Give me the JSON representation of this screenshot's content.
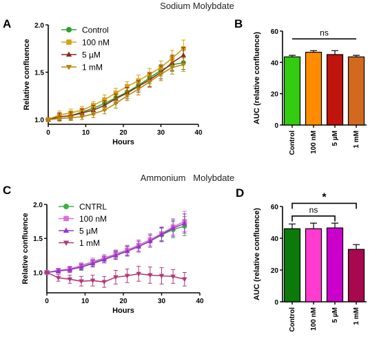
{
  "section_titles": [
    "Sodium Molybdate",
    "Ammonium   Molybdate"
  ],
  "panel_labels": [
    "A",
    "B",
    "C",
    "D"
  ],
  "chart_data": [
    {
      "panel": "A",
      "type": "line",
      "xlabel": "Hours",
      "ylabel": "Relative confluence",
      "xlim": [
        0,
        40
      ],
      "ylim": [
        0.95,
        2.0
      ],
      "xticks": [
        0,
        10,
        20,
        30,
        40
      ],
      "yticks": [
        1.0,
        1.5,
        2.0
      ],
      "ytick_labels": [
        "1.0",
        "1.5",
        "2.0"
      ],
      "legend_position": "top-left",
      "x": [
        0,
        3,
        6,
        9,
        12,
        15,
        18,
        21,
        24,
        27,
        30,
        33,
        36
      ],
      "series": [
        {
          "name": "Control",
          "color": "#2ca02c",
          "marker": "circle",
          "values": [
            1.0,
            1.03,
            1.04,
            1.08,
            1.12,
            1.17,
            1.23,
            1.29,
            1.36,
            1.44,
            1.52,
            1.58,
            1.6
          ],
          "errors": [
            0.01,
            0.03,
            0.03,
            0.03,
            0.03,
            0.04,
            0.04,
            0.05,
            0.05,
            0.06,
            0.06,
            0.07,
            0.07
          ]
        },
        {
          "name": "100 nM",
          "color": "#d4a017",
          "marker": "square",
          "values": [
            1.0,
            1.05,
            1.07,
            1.1,
            1.15,
            1.21,
            1.28,
            1.35,
            1.41,
            1.48,
            1.55,
            1.65,
            1.75
          ],
          "errors": [
            0.01,
            0.04,
            0.04,
            0.04,
            0.04,
            0.05,
            0.05,
            0.05,
            0.06,
            0.06,
            0.07,
            0.08,
            0.09
          ]
        },
        {
          "name": "5 µM",
          "color": "#8b2a1a",
          "marker": "triangle-up",
          "values": [
            1.0,
            1.03,
            1.04,
            1.07,
            1.1,
            1.15,
            1.22,
            1.28,
            1.35,
            1.42,
            1.5,
            1.6,
            1.68
          ],
          "errors": [
            0.01,
            0.04,
            0.04,
            0.04,
            0.05,
            0.05,
            0.05,
            0.06,
            0.06,
            0.07,
            0.07,
            0.08,
            0.08
          ]
        },
        {
          "name": "1 mM",
          "color": "#b8860b",
          "marker": "triangle-down",
          "values": [
            1.0,
            1.01,
            1.02,
            1.03,
            1.06,
            1.1,
            1.17,
            1.25,
            1.32,
            1.4,
            1.48,
            1.55,
            1.58
          ],
          "errors": [
            0.01,
            0.03,
            0.03,
            0.03,
            0.04,
            0.04,
            0.05,
            0.05,
            0.06,
            0.06,
            0.07,
            0.07,
            0.07
          ]
        }
      ]
    },
    {
      "panel": "B",
      "type": "bar",
      "ylabel": "AUC (relative confluence)",
      "ylim": [
        0,
        60
      ],
      "yticks": [
        0,
        20,
        40,
        60
      ],
      "categories": [
        "Control",
        "100 nM",
        "5 µM",
        "1 mM"
      ],
      "values": [
        43.5,
        46.5,
        45.0,
        43.5
      ],
      "errors": [
        1.0,
        1.0,
        2.5,
        1.0
      ],
      "colors": [
        "#33cc11",
        "#ff8c00",
        "#c0140c",
        "#d2691e"
      ],
      "comparisons": [
        {
          "from": 0,
          "to": 3,
          "label": "ns",
          "level": 55
        }
      ]
    },
    {
      "panel": "C",
      "type": "line",
      "xlabel": "Hours",
      "ylabel": "Relative confluence",
      "xlim": [
        0,
        40
      ],
      "ylim": [
        0.7,
        2.0
      ],
      "xticks": [
        0,
        10,
        20,
        30,
        40
      ],
      "yticks": [
        1.0,
        1.5,
        2.0
      ],
      "ytick_labels": [
        "1.0",
        "1.5",
        "2.0"
      ],
      "legend_position": "top-left",
      "x": [
        0,
        3,
        6,
        9,
        12,
        15,
        18,
        21,
        24,
        27,
        30,
        33,
        36
      ],
      "series": [
        {
          "name": "CNTRL",
          "color": "#3cb043",
          "marker": "circle",
          "values": [
            1.0,
            1.02,
            1.04,
            1.08,
            1.14,
            1.2,
            1.26,
            1.32,
            1.38,
            1.46,
            1.55,
            1.63,
            1.68
          ],
          "errors": [
            0.01,
            0.03,
            0.04,
            0.05,
            0.05,
            0.06,
            0.06,
            0.07,
            0.08,
            0.09,
            0.1,
            0.12,
            0.14
          ]
        },
        {
          "name": "100 nM",
          "color": "#da70d6",
          "marker": "square",
          "values": [
            1.0,
            1.03,
            1.05,
            1.1,
            1.16,
            1.21,
            1.27,
            1.33,
            1.4,
            1.48,
            1.57,
            1.67,
            1.75
          ],
          "errors": [
            0.01,
            0.03,
            0.04,
            0.04,
            0.05,
            0.05,
            0.06,
            0.07,
            0.08,
            0.09,
            0.1,
            0.12,
            0.15
          ]
        },
        {
          "name": "5 µM",
          "color": "#9933cc",
          "marker": "triangle-up",
          "values": [
            1.0,
            1.02,
            1.04,
            1.08,
            1.13,
            1.19,
            1.25,
            1.31,
            1.38,
            1.46,
            1.56,
            1.65,
            1.72
          ],
          "errors": [
            0.01,
            0.03,
            0.04,
            0.04,
            0.05,
            0.05,
            0.06,
            0.07,
            0.08,
            0.09,
            0.1,
            0.12,
            0.14
          ]
        },
        {
          "name": "1 mM",
          "color": "#b03a7a",
          "marker": "triangle-down",
          "values": [
            1.0,
            0.92,
            0.9,
            0.87,
            0.88,
            0.86,
            0.93,
            0.95,
            0.98,
            0.96,
            0.95,
            0.94,
            0.9
          ],
          "errors": [
            0.02,
            0.05,
            0.06,
            0.07,
            0.08,
            0.08,
            0.1,
            0.1,
            0.11,
            0.12,
            0.12,
            0.1,
            0.1
          ]
        }
      ]
    },
    {
      "panel": "D",
      "type": "bar",
      "ylabel": "AUC (relative confluence)",
      "ylim": [
        0,
        60
      ],
      "yticks": [
        0,
        20,
        40,
        60
      ],
      "categories": [
        "Control",
        "100 nM",
        "5 µM",
        "1 mM"
      ],
      "values": [
        46.0,
        46.0,
        46.5,
        33.0
      ],
      "errors": [
        3.0,
        3.5,
        3.0,
        3.0
      ],
      "colors": [
        "#0b7a0b",
        "#ff3ccf",
        "#cc00cc",
        "#a8084d"
      ],
      "comparisons": [
        {
          "from": 0,
          "to": 2,
          "label": "ns",
          "level": 54
        },
        {
          "from": 0,
          "to": 3,
          "label": "*",
          "level": 62
        }
      ]
    }
  ]
}
